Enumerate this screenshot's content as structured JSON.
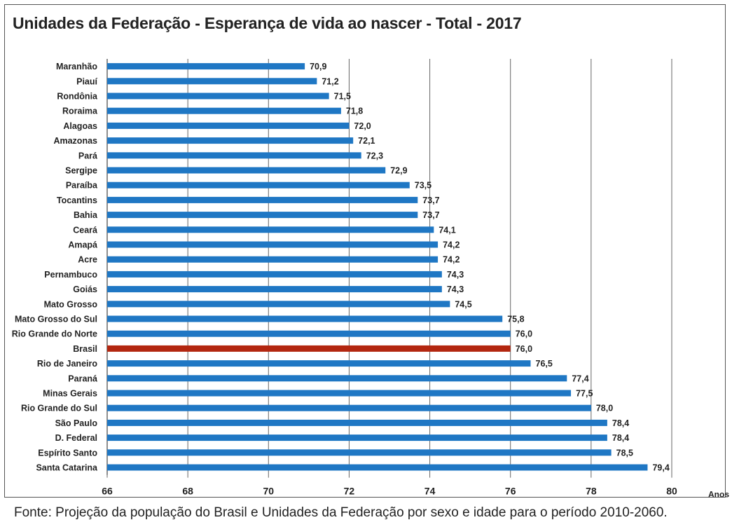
{
  "chart_data": {
    "type": "bar",
    "orientation": "horizontal",
    "title": "Unidades da Federação - Esperança de vida ao nascer - Total - 2017",
    "xlabel": "Anos",
    "ylabel": "",
    "xlim": [
      66,
      80
    ],
    "xticks": [
      "66",
      "68",
      "70",
      "72",
      "74",
      "76",
      "78",
      "80"
    ],
    "grid": "vertical",
    "categories": [
      "Maranhão",
      "Piauí",
      "Rondônia",
      "Roraima",
      "Alagoas",
      "Amazonas",
      "Pará",
      "Sergipe",
      "Paraíba",
      "Tocantins",
      "Bahia",
      "Ceará",
      "Amapá",
      "Acre",
      "Pernambuco",
      "Goiás",
      "Mato Grosso",
      "Mato Grosso do Sul",
      "Rio Grande do Norte",
      "Brasil",
      "Rio de Janeiro",
      "Paraná",
      "Minas Gerais",
      "Rio Grande do Sul",
      "São Paulo",
      "D. Federal",
      "Espírito Santo",
      "Santa Catarina"
    ],
    "values": [
      70.9,
      71.2,
      71.5,
      71.8,
      72.0,
      72.1,
      72.3,
      72.9,
      73.5,
      73.7,
      73.7,
      74.1,
      74.2,
      74.2,
      74.3,
      74.3,
      74.5,
      75.8,
      76.0,
      76.0,
      76.5,
      77.4,
      77.5,
      78.0,
      78.4,
      78.4,
      78.5,
      79.4
    ],
    "value_labels": [
      "70,9",
      "71,2",
      "71,5",
      "71,8",
      "72,0",
      "72,1",
      "72,3",
      "72,9",
      "73,5",
      "73,7",
      "73,7",
      "74,1",
      "74,2",
      "74,2",
      "74,3",
      "74,3",
      "74,5",
      "75,8",
      "76,0",
      "76,0",
      "76,5",
      "77,4",
      "77,5",
      "78,0",
      "78,4",
      "78,4",
      "78,5",
      "79,4"
    ],
    "bar_color": "#1f77c4",
    "highlight": {
      "category": "Brasil",
      "color": "#b3260f"
    }
  },
  "source": "Fonte: Projeção da população do Brasil e Unidades da Federação por sexo e idade para o período 2010-2060."
}
